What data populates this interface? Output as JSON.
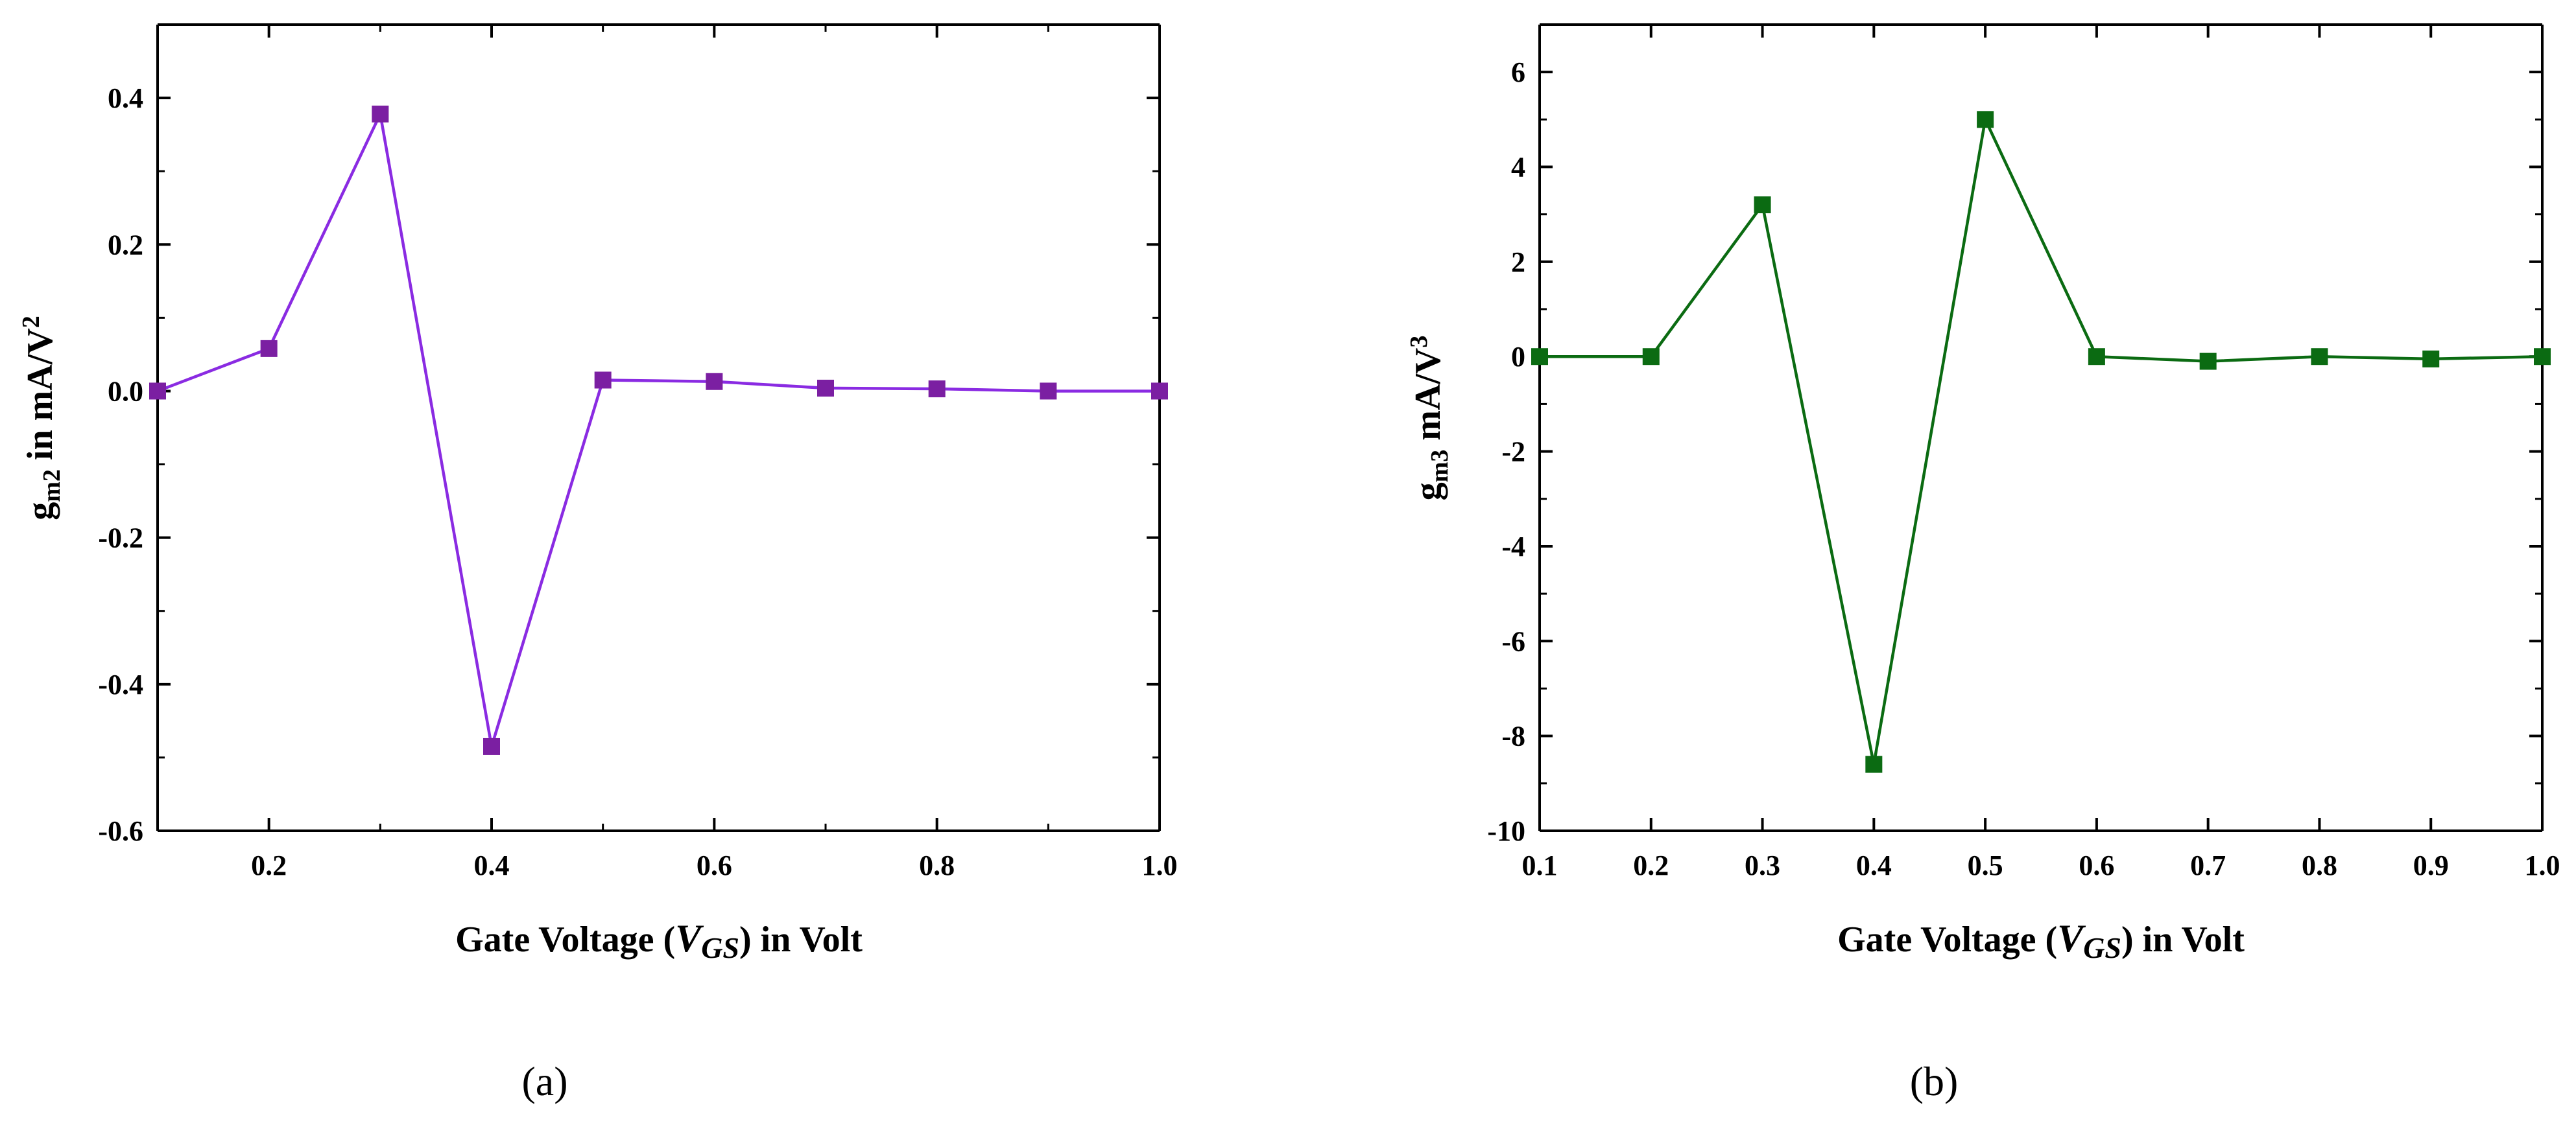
{
  "chart_data": [
    {
      "type": "line",
      "panel_label": "(a)",
      "title": "",
      "xlabel": {
        "prefix": "Gate Voltage (",
        "var": "V",
        "sub": "GS",
        "suffix": ") in Volt"
      },
      "ylabel": {
        "base": "g",
        "sub": "m2",
        "mid": " in mA/V",
        "sup": "2"
      },
      "xlim": [
        0.1,
        1.0
      ],
      "ylim": [
        -0.6,
        0.5
      ],
      "xticks": [
        0.2,
        0.4,
        0.6,
        0.8,
        1.0
      ],
      "xtick_labels": [
        "0.2",
        "0.4",
        "0.6",
        "0.8",
        "1.0"
      ],
      "yticks": [
        -0.6,
        -0.4,
        -0.2,
        0.0,
        0.2,
        0.4
      ],
      "ytick_labels": [
        "-0.6",
        "-0.4",
        "-0.2",
        "0.0",
        "0.2",
        "0.4"
      ],
      "color": "#7B1FA2",
      "line_color": "#8A2BE2",
      "grid": false,
      "series": [
        {
          "name": "gm2",
          "x": [
            0.1,
            0.2,
            0.3,
            0.4,
            0.5,
            0.6,
            0.7,
            0.8,
            0.9,
            1.0
          ],
          "values": [
            0.0,
            0.058,
            0.378,
            -0.485,
            0.015,
            0.013,
            0.004,
            0.003,
            0.0,
            0.0
          ]
        }
      ]
    },
    {
      "type": "line",
      "panel_label": "(b)",
      "title": "",
      "xlabel": {
        "prefix": "Gate Voltage (",
        "var": "V",
        "sub": "GS",
        "suffix": ") in Volt"
      },
      "ylabel": {
        "base": "g",
        "sub": "m3",
        "mid": " mA/V",
        "sup": "3"
      },
      "xlim": [
        0.1,
        1.0
      ],
      "ylim": [
        -10,
        7
      ],
      "xticks": [
        0.1,
        0.2,
        0.3,
        0.4,
        0.5,
        0.6,
        0.7,
        0.8,
        0.9,
        1.0
      ],
      "xtick_labels": [
        "0.1",
        "0.2",
        "0.3",
        "0.4",
        "0.5",
        "0.6",
        "0.7",
        "0.8",
        "0.9",
        "1.0"
      ],
      "yticks": [
        -10,
        -8,
        -6,
        -4,
        -2,
        0,
        2,
        4,
        6
      ],
      "ytick_labels": [
        "-10",
        "-8",
        "-6",
        "-4",
        "-2",
        "0",
        "2",
        "4",
        "6"
      ],
      "color": "#0B6B12",
      "line_color": "#0B6B12",
      "grid": false,
      "series": [
        {
          "name": "gm3",
          "x": [
            0.1,
            0.2,
            0.3,
            0.4,
            0.5,
            0.6,
            0.7,
            0.8,
            0.9,
            1.0
          ],
          "values": [
            0.0,
            0.0,
            3.2,
            -8.6,
            5.0,
            0.0,
            -0.1,
            0.0,
            -0.05,
            0.0
          ]
        }
      ]
    }
  ]
}
